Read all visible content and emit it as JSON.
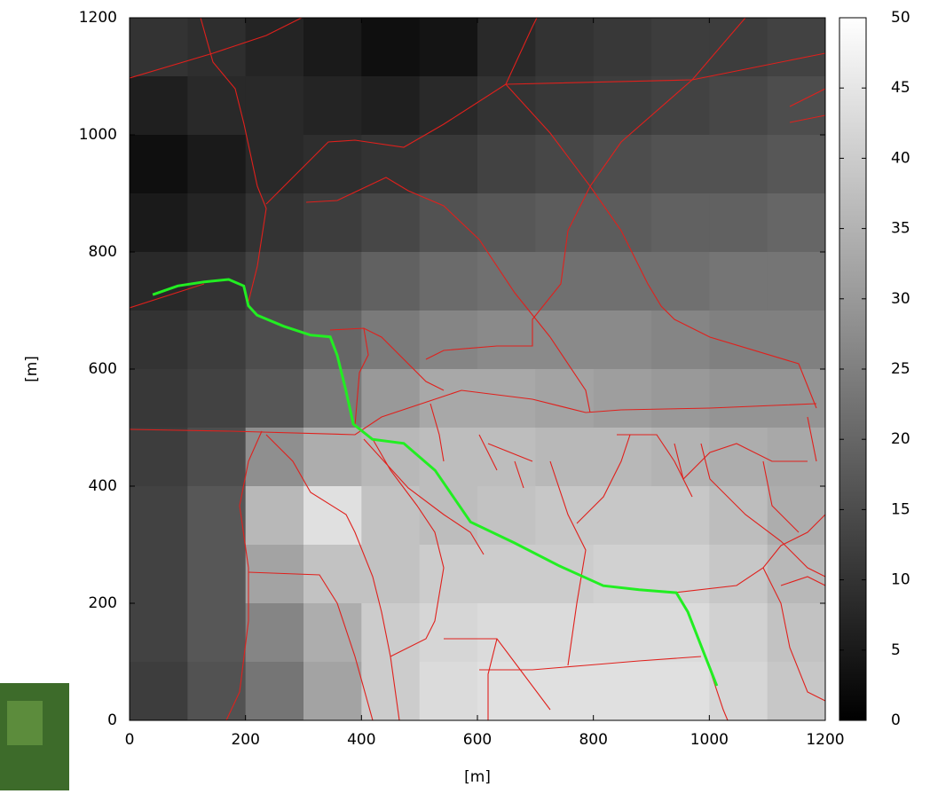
{
  "chart_data": {
    "type": "heatmap",
    "xlabel": "[m]",
    "ylabel": "[m]",
    "xlim": [
      0,
      1200
    ],
    "ylim": [
      0,
      1200
    ],
    "xticks": [
      0,
      200,
      400,
      600,
      800,
      1000,
      1200
    ],
    "yticks": [
      0,
      200,
      400,
      600,
      800,
      1000,
      1200
    ],
    "zlim": [
      0,
      50
    ],
    "zticks": [
      0,
      5,
      10,
      15,
      20,
      25,
      30,
      35,
      40,
      45,
      50
    ],
    "z": [
      [
        10,
        9,
        7,
        5,
        3,
        4,
        8,
        10,
        11,
        12,
        12,
        13
      ],
      [
        6,
        8,
        8,
        7,
        6,
        8,
        10,
        11,
        12,
        13,
        14,
        15
      ],
      [
        3,
        5,
        8,
        9,
        10,
        11,
        13,
        14,
        15,
        16,
        16,
        17
      ],
      [
        5,
        7,
        10,
        12,
        14,
        16,
        17,
        18,
        18,
        19,
        19,
        20
      ],
      [
        8,
        10,
        13,
        16,
        19,
        21,
        22,
        22,
        22,
        22,
        23,
        23
      ],
      [
        10,
        12,
        15,
        20,
        24,
        26,
        27,
        27,
        27,
        26,
        25,
        25
      ],
      [
        11,
        13,
        17,
        24,
        30,
        33,
        33,
        32,
        31,
        30,
        29,
        29
      ],
      [
        12,
        15,
        28,
        34,
        36,
        37,
        37,
        36,
        36,
        35,
        34,
        33
      ],
      [
        13,
        17,
        36,
        44,
        38,
        37,
        38,
        39,
        39,
        39,
        37,
        34
      ],
      [
        13,
        17,
        32,
        38,
        38,
        40,
        40,
        40,
        41,
        41,
        39,
        36
      ],
      [
        13,
        17,
        26,
        34,
        40,
        42,
        43,
        43,
        43,
        43,
        41,
        38
      ],
      [
        12,
        16,
        23,
        32,
        40,
        43,
        44,
        44,
        44,
        44,
        42,
        39
      ]
    ],
    "series": [
      {
        "color": "#22ee22",
        "x": [
          40,
          83,
          129,
          171,
          197,
          205,
          220,
          266,
          312,
          346,
          358,
          373,
          386,
          419,
          473,
          527,
          588,
          664,
          741,
          817,
          879,
          943,
          963,
          993,
          1013
        ],
        "y": [
          727,
          742,
          749,
          753,
          742,
          708,
          692,
          673,
          658,
          655,
          624,
          564,
          506,
          480,
          473,
          427,
          339,
          303,
          264,
          230,
          223,
          218,
          185,
          109,
          59
        ]
      }
    ]
  }
}
